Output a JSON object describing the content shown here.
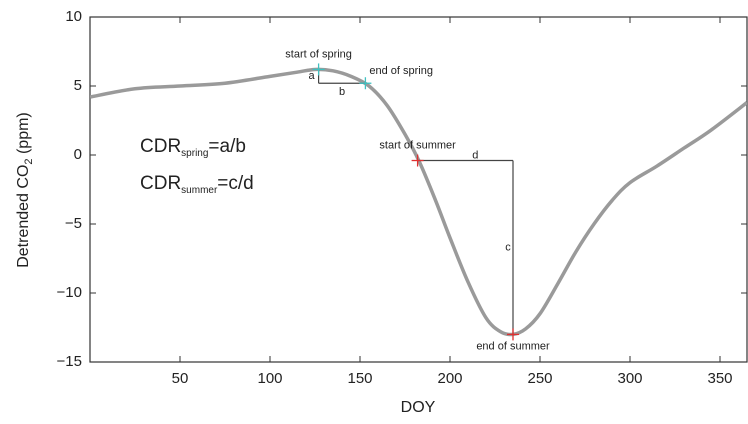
{
  "chart_data": {
    "type": "line",
    "x": [
      0,
      25,
      50,
      75,
      100,
      115,
      125,
      135,
      145,
      155,
      165,
      175,
      183,
      192,
      200,
      210,
      220,
      228,
      235,
      242,
      250,
      260,
      270,
      280,
      290,
      300,
      315,
      330,
      345,
      365
    ],
    "values": [
      4.2,
      4.8,
      5.0,
      5.2,
      5.7,
      6.0,
      6.2,
      6.1,
      5.7,
      5.0,
      3.6,
      1.5,
      -0.5,
      -3.3,
      -6.0,
      -9.2,
      -11.8,
      -12.8,
      -13.0,
      -12.6,
      -11.5,
      -9.3,
      -7.0,
      -5.0,
      -3.3,
      -2.0,
      -0.8,
      0.5,
      1.8,
      3.8
    ],
    "color": "#9a9a9a",
    "xlim": [
      0,
      365
    ],
    "ylim": [
      -15,
      10
    ],
    "xticks": [
      50,
      100,
      150,
      200,
      250,
      300,
      350
    ],
    "yticks": [
      {
        "value": -15,
        "label": "−15"
      },
      {
        "value": -10,
        "label": "−10"
      },
      {
        "value": -5,
        "label": "−5"
      },
      0,
      5,
      10
    ],
    "xlabel": "DOY",
    "ylabel": {
      "main": "Detrended CO",
      "sub": "2",
      "rest": "  (ppm)"
    },
    "annotations": [
      {
        "text": "start of spring",
        "x": 127,
        "y": 6.2,
        "color": "#3fc0c0",
        "label_position": "above"
      },
      {
        "text": "end of spring",
        "x": 153,
        "y": 5.2,
        "color": "#3fc0c0",
        "label_position": "right"
      },
      {
        "text": "start of summer",
        "x": 182,
        "y": -0.4,
        "color": "#e03030",
        "label_position": "above"
      },
      {
        "text": "end of summer",
        "x": 235,
        "y": -13.0,
        "color": "#e03030",
        "label_position": "below"
      }
    ],
    "bracket_labels": {
      "a": "a",
      "b": "b",
      "c": "c",
      "d": "d"
    },
    "formulas": [
      {
        "main": "CDR",
        "sub": "spring",
        "rest": "=a/b"
      },
      {
        "main": "CDR",
        "sub": "summer",
        "rest": "=c/d"
      }
    ]
  }
}
